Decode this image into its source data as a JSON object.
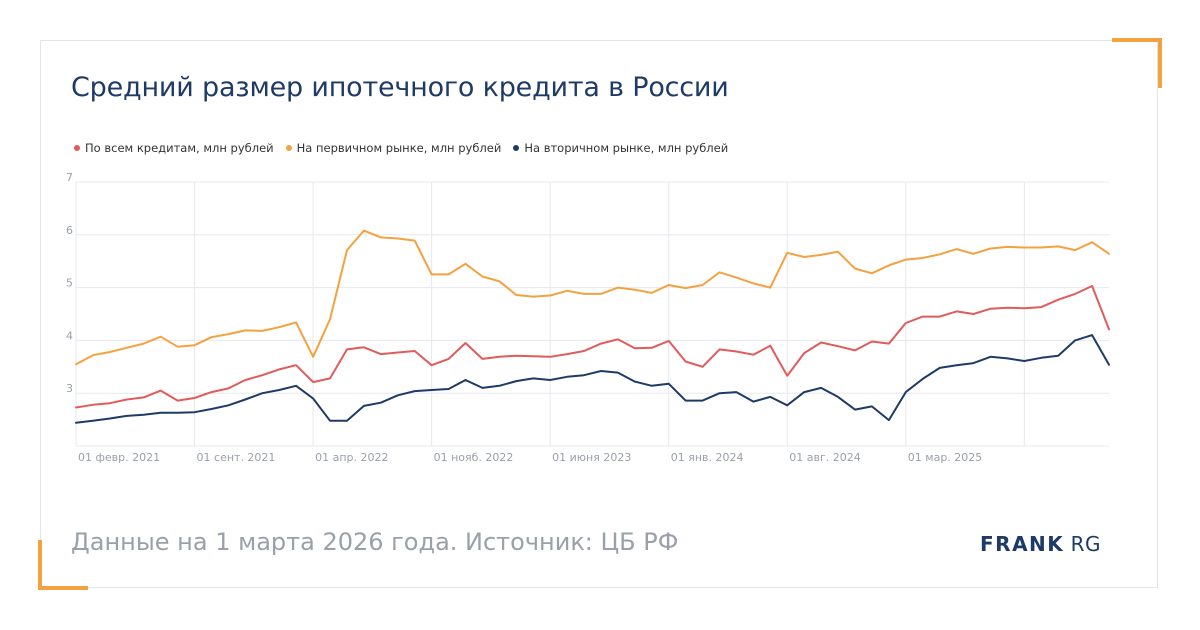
{
  "title": "Средний размер ипотечного кредита в России",
  "footer": "Данные на 1 марта 2026 года. Источник: ЦБ РФ",
  "logo": {
    "word1": "FRANK",
    "word2": "RG"
  },
  "colors": {
    "accent": "#f4a13f",
    "brand": "#1e3a66"
  },
  "chart_data": {
    "type": "line",
    "ylim": [
      2,
      7
    ],
    "y_ticks": [
      "3",
      "4",
      "5",
      "6",
      "7"
    ],
    "x_tick_labels": [
      "01 февр. 2021",
      "01 сент. 2021",
      "01 апр. 2022",
      "01 нояб. 2022",
      "01 июня 2023",
      "01 янв. 2024",
      "01 авг. 2024",
      "01 мар. 2025"
    ],
    "x_tick_positions": [
      0,
      7,
      14,
      21,
      28,
      35,
      42,
      49
    ],
    "x_extra_gridlines": [
      56
    ],
    "legend_position": "top-left",
    "series": [
      {
        "name": "По всем кредитам, млн рублей",
        "color": "#e25b5b",
        "values": [
          2.73,
          2.78,
          2.81,
          2.88,
          2.92,
          3.05,
          2.86,
          2.91,
          3.02,
          3.09,
          3.25,
          3.34,
          3.45,
          3.53,
          3.21,
          3.28,
          3.83,
          3.87,
          3.74,
          3.77,
          3.8,
          3.53,
          3.65,
          3.95,
          3.65,
          3.69,
          3.71,
          3.7,
          3.69,
          3.74,
          3.8,
          3.94,
          4.02,
          3.85,
          3.86,
          3.99,
          3.6,
          3.5,
          3.83,
          3.79,
          3.73,
          3.9,
          3.33,
          3.76,
          3.96,
          3.89,
          3.81,
          3.98,
          3.94,
          4.33,
          4.45,
          4.45,
          4.55,
          4.5,
          4.6,
          4.62,
          4.61,
          4.63,
          4.77,
          4.88,
          5.03,
          4.21
        ]
      },
      {
        "name": "На первичном рынке, млн рублей",
        "color": "#f4a13f",
        "values": [
          3.55,
          3.72,
          3.78,
          3.86,
          3.94,
          4.07,
          3.88,
          3.91,
          4.06,
          4.12,
          4.19,
          4.18,
          4.25,
          4.34,
          3.69,
          4.4,
          5.71,
          6.08,
          5.95,
          5.93,
          5.89,
          5.25,
          5.25,
          5.45,
          5.21,
          5.12,
          4.86,
          4.83,
          4.85,
          4.94,
          4.88,
          4.88,
          5.0,
          4.96,
          4.9,
          5.05,
          4.99,
          5.05,
          5.29,
          5.19,
          5.08,
          5.0,
          5.66,
          5.58,
          5.62,
          5.68,
          5.36,
          5.27,
          5.42,
          5.53,
          5.56,
          5.63,
          5.73,
          5.64,
          5.74,
          5.77,
          5.76,
          5.76,
          5.78,
          5.71,
          5.86,
          5.64
        ]
      },
      {
        "name": "На вторичном рынке, млн рублей",
        "color": "#1e3a66",
        "values": [
          2.44,
          2.48,
          2.52,
          2.57,
          2.59,
          2.63,
          2.63,
          2.64,
          2.7,
          2.77,
          2.88,
          3.0,
          3.06,
          3.14,
          2.9,
          2.48,
          2.48,
          2.76,
          2.82,
          2.96,
          3.04,
          3.06,
          3.08,
          3.25,
          3.1,
          3.14,
          3.23,
          3.28,
          3.25,
          3.31,
          3.34,
          3.42,
          3.39,
          3.22,
          3.14,
          3.18,
          2.86,
          2.86,
          3.0,
          3.02,
          2.84,
          2.93,
          2.77,
          3.02,
          3.1,
          2.93,
          2.69,
          2.75,
          2.49,
          3.02,
          3.27,
          3.48,
          3.53,
          3.57,
          3.69,
          3.66,
          3.61,
          3.67,
          3.71,
          4.0,
          4.1,
          3.54
        ]
      }
    ]
  }
}
